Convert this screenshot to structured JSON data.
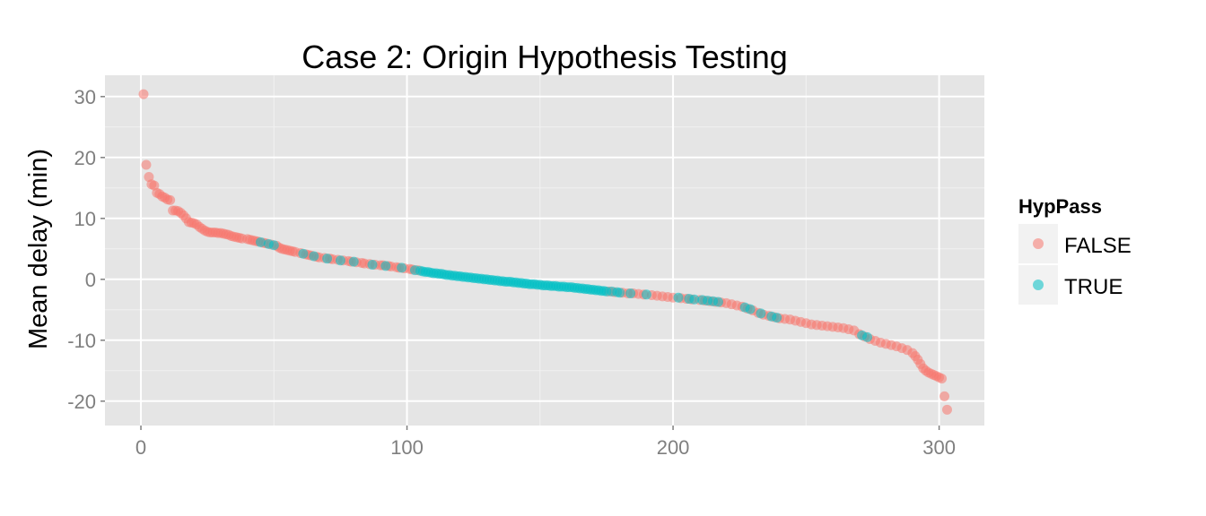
{
  "chart_data": {
    "type": "scatter",
    "title": "Case 2: Origin Hypothesis Testing",
    "xlabel": "",
    "ylabel": "Mean delay (min)",
    "xlim": [
      -13.5,
      317
    ],
    "ylim": [
      -24,
      33.5
    ],
    "x_ticks": [
      0,
      100,
      200,
      300
    ],
    "y_ticks": [
      -20,
      -10,
      0,
      10,
      20,
      30
    ],
    "grid": true,
    "legend": {
      "title": "HypPass",
      "position": "right",
      "entries": [
        {
          "label": "FALSE",
          "color": "#F8766D"
        },
        {
          "label": "TRUE",
          "color": "#00BFC4"
        }
      ]
    },
    "series": [
      {
        "name": "FALSE",
        "color": "#F8766D",
        "points": [
          [
            1,
            30.4
          ],
          [
            2,
            18.8
          ],
          [
            3,
            16.8
          ],
          [
            4,
            15.6
          ],
          [
            5,
            15.4
          ],
          [
            6,
            14.2
          ],
          [
            7,
            14.0
          ],
          [
            8,
            13.6
          ],
          [
            9,
            13.4
          ],
          [
            10,
            13.1
          ],
          [
            11,
            13.0
          ],
          [
            12,
            11.3
          ],
          [
            13,
            11.3
          ],
          [
            14,
            11.2
          ],
          [
            15,
            10.9
          ],
          [
            16,
            10.5
          ],
          [
            17,
            10.0
          ],
          [
            18,
            9.4
          ],
          [
            19,
            9.3
          ],
          [
            20,
            9.2
          ],
          [
            21,
            9.0
          ],
          [
            22,
            8.6
          ],
          [
            23,
            8.3
          ],
          [
            24,
            8.0
          ],
          [
            25,
            7.8
          ],
          [
            26,
            7.7
          ],
          [
            27,
            7.7
          ],
          [
            28,
            7.7
          ],
          [
            29,
            7.6
          ],
          [
            30,
            7.6
          ],
          [
            31,
            7.5
          ],
          [
            32,
            7.4
          ],
          [
            33,
            7.3
          ],
          [
            34,
            7.1
          ],
          [
            35,
            7.0
          ],
          [
            36,
            6.9
          ],
          [
            37,
            6.8
          ],
          [
            38,
            6.7
          ],
          [
            40,
            6.6
          ],
          [
            41,
            6.5
          ],
          [
            42,
            6.4
          ],
          [
            43,
            6.3
          ],
          [
            44,
            6.2
          ],
          [
            46,
            6.0
          ],
          [
            47,
            5.9
          ],
          [
            49,
            5.7
          ],
          [
            51,
            5.5
          ],
          [
            52,
            5.2
          ],
          [
            53,
            5.0
          ],
          [
            54,
            4.9
          ],
          [
            55,
            4.8
          ],
          [
            56,
            4.7
          ],
          [
            57,
            4.6
          ],
          [
            58,
            4.5
          ],
          [
            60,
            4.3
          ],
          [
            62,
            4.1
          ],
          [
            63,
            4.0
          ],
          [
            64,
            3.9
          ],
          [
            66,
            3.7
          ],
          [
            67,
            3.6
          ],
          [
            69,
            3.5
          ],
          [
            71,
            3.4
          ],
          [
            72,
            3.3
          ],
          [
            74,
            3.2
          ],
          [
            76,
            3.1
          ],
          [
            78,
            3.0
          ],
          [
            79,
            2.9
          ],
          [
            81,
            2.8
          ],
          [
            83,
            2.7
          ],
          [
            84,
            2.6
          ],
          [
            86,
            2.5
          ],
          [
            88,
            2.4
          ],
          [
            90,
            2.3
          ],
          [
            91,
            2.3
          ],
          [
            93,
            2.2
          ],
          [
            94,
            2.1
          ],
          [
            96,
            2.0
          ],
          [
            97,
            1.9
          ],
          [
            99,
            1.8
          ],
          [
            101,
            1.7
          ],
          [
            102,
            1.6
          ],
          [
            104,
            1.5
          ],
          [
            176,
            -2.0
          ],
          [
            178,
            -2.1
          ],
          [
            181,
            -2.2
          ],
          [
            183,
            -2.3
          ],
          [
            185,
            -2.3
          ],
          [
            187,
            -2.4
          ],
          [
            189,
            -2.5
          ],
          [
            192,
            -2.6
          ],
          [
            194,
            -2.7
          ],
          [
            196,
            -2.8
          ],
          [
            198,
            -2.9
          ],
          [
            200,
            -3.0
          ],
          [
            203,
            -3.1
          ],
          [
            205,
            -3.2
          ],
          [
            207,
            -3.3
          ],
          [
            210,
            -3.4
          ],
          [
            212,
            -3.5
          ],
          [
            214,
            -3.6
          ],
          [
            216,
            -3.7
          ],
          [
            218,
            -3.8
          ],
          [
            220,
            -3.9
          ],
          [
            222,
            -4.1
          ],
          [
            224,
            -4.3
          ],
          [
            226,
            -4.5
          ],
          [
            228,
            -4.8
          ],
          [
            230,
            -5.1
          ],
          [
            232,
            -5.5
          ],
          [
            234,
            -5.8
          ],
          [
            236,
            -6.0
          ],
          [
            238,
            -6.2
          ],
          [
            240,
            -6.4
          ],
          [
            242,
            -6.5
          ],
          [
            244,
            -6.6
          ],
          [
            246,
            -6.8
          ],
          [
            248,
            -7.0
          ],
          [
            250,
            -7.2
          ],
          [
            252,
            -7.4
          ],
          [
            254,
            -7.5
          ],
          [
            256,
            -7.6
          ],
          [
            258,
            -7.7
          ],
          [
            260,
            -7.8
          ],
          [
            262,
            -7.9
          ],
          [
            264,
            -8.0
          ],
          [
            266,
            -8.2
          ],
          [
            268,
            -8.4
          ],
          [
            270,
            -9.0
          ],
          [
            272,
            -9.4
          ],
          [
            274,
            -9.8
          ],
          [
            276,
            -10.1
          ],
          [
            278,
            -10.4
          ],
          [
            280,
            -10.6
          ],
          [
            282,
            -10.8
          ],
          [
            284,
            -11.0
          ],
          [
            286,
            -11.3
          ],
          [
            288,
            -11.6
          ],
          [
            290,
            -12.1
          ],
          [
            291,
            -12.6
          ],
          [
            292,
            -13.2
          ],
          [
            293,
            -13.9
          ],
          [
            294,
            -14.6
          ],
          [
            295,
            -15.0
          ],
          [
            296,
            -15.3
          ],
          [
            297,
            -15.5
          ],
          [
            298,
            -15.7
          ],
          [
            299,
            -15.9
          ],
          [
            300,
            -16.1
          ],
          [
            301,
            -16.3
          ],
          [
            302,
            -19.2
          ],
          [
            303,
            -21.4
          ]
        ]
      },
      {
        "name": "TRUE",
        "color": "#00BFC4",
        "points": [
          [
            45,
            6.1
          ],
          [
            48,
            5.8
          ],
          [
            50,
            5.6
          ],
          [
            61,
            4.2
          ],
          [
            65,
            3.8
          ],
          [
            70,
            3.4
          ],
          [
            75,
            3.1
          ],
          [
            80,
            2.9
          ],
          [
            87,
            2.4
          ],
          [
            92,
            2.2
          ],
          [
            98,
            1.9
          ],
          [
            103,
            1.5
          ],
          [
            105,
            1.4
          ],
          [
            106,
            1.3
          ],
          [
            107,
            1.2
          ],
          [
            108,
            1.2
          ],
          [
            109,
            1.1
          ],
          [
            110,
            1.0
          ],
          [
            111,
            1.0
          ],
          [
            112,
            0.9
          ],
          [
            113,
            0.9
          ],
          [
            114,
            0.8
          ],
          [
            115,
            0.7
          ],
          [
            116,
            0.7
          ],
          [
            117,
            0.6
          ],
          [
            118,
            0.6
          ],
          [
            119,
            0.5
          ],
          [
            120,
            0.5
          ],
          [
            121,
            0.4
          ],
          [
            122,
            0.4
          ],
          [
            123,
            0.3
          ],
          [
            124,
            0.3
          ],
          [
            125,
            0.2
          ],
          [
            126,
            0.2
          ],
          [
            127,
            0.1
          ],
          [
            128,
            0.1
          ],
          [
            129,
            0.0
          ],
          [
            130,
            0.0
          ],
          [
            131,
            -0.1
          ],
          [
            132,
            -0.1
          ],
          [
            133,
            -0.2
          ],
          [
            134,
            -0.2
          ],
          [
            135,
            -0.3
          ],
          [
            136,
            -0.3
          ],
          [
            137,
            -0.4
          ],
          [
            138,
            -0.4
          ],
          [
            139,
            -0.4
          ],
          [
            140,
            -0.5
          ],
          [
            141,
            -0.5
          ],
          [
            142,
            -0.6
          ],
          [
            143,
            -0.6
          ],
          [
            144,
            -0.7
          ],
          [
            145,
            -0.7
          ],
          [
            146,
            -0.8
          ],
          [
            147,
            -0.8
          ],
          [
            148,
            -0.8
          ],
          [
            149,
            -0.9
          ],
          [
            150,
            -0.9
          ],
          [
            151,
            -1.0
          ],
          [
            152,
            -1.0
          ],
          [
            153,
            -1.0
          ],
          [
            154,
            -1.1
          ],
          [
            155,
            -1.1
          ],
          [
            156,
            -1.1
          ],
          [
            157,
            -1.2
          ],
          [
            158,
            -1.2
          ],
          [
            159,
            -1.2
          ],
          [
            160,
            -1.3
          ],
          [
            161,
            -1.3
          ],
          [
            162,
            -1.3
          ],
          [
            163,
            -1.4
          ],
          [
            164,
            -1.4
          ],
          [
            165,
            -1.5
          ],
          [
            166,
            -1.5
          ],
          [
            167,
            -1.6
          ],
          [
            168,
            -1.6
          ],
          [
            169,
            -1.7
          ],
          [
            170,
            -1.7
          ],
          [
            171,
            -1.8
          ],
          [
            172,
            -1.8
          ],
          [
            173,
            -1.9
          ],
          [
            174,
            -1.9
          ],
          [
            175,
            -2.0
          ],
          [
            177,
            -2.0
          ],
          [
            179,
            -2.1
          ],
          [
            180,
            -2.2
          ],
          [
            184,
            -2.3
          ],
          [
            190,
            -2.5
          ],
          [
            202,
            -3.0
          ],
          [
            206,
            -3.2
          ],
          [
            208,
            -3.3
          ],
          [
            211,
            -3.4
          ],
          [
            213,
            -3.5
          ],
          [
            215,
            -3.6
          ],
          [
            217,
            -3.7
          ],
          [
            227,
            -4.6
          ],
          [
            229,
            -4.9
          ],
          [
            233,
            -5.6
          ],
          [
            237,
            -6.1
          ],
          [
            239,
            -6.3
          ],
          [
            271,
            -9.2
          ],
          [
            273,
            -9.5
          ]
        ]
      }
    ]
  }
}
